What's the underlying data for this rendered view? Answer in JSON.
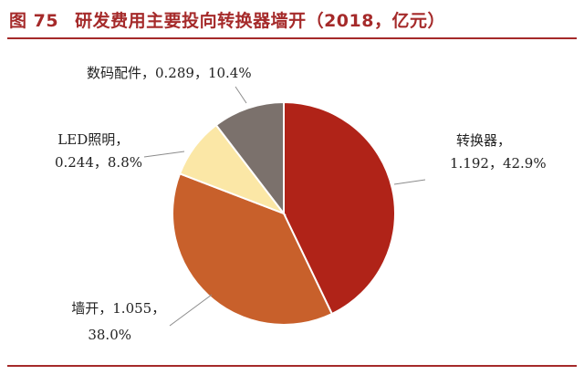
{
  "figure": {
    "number": "图 75",
    "title": "研发费用主要投向转换器墙开（2018，亿元）"
  },
  "chart_data": {
    "type": "pie",
    "title": "研发费用主要投向转换器墙开（2018，亿元）",
    "unit": "亿元",
    "start_angle_deg": 0,
    "direction": "clockwise",
    "slices": [
      {
        "name": "转换器",
        "value": 1.192,
        "percent": 42.9,
        "color": "#b02318",
        "label_lines": [
          "转换器，",
          "1.192，42.9%"
        ]
      },
      {
        "name": "墙开",
        "value": 1.055,
        "percent": 38.0,
        "color": "#c8602b",
        "label_lines": [
          "墙开，1.055，",
          "38.0%"
        ]
      },
      {
        "name": "LED照明",
        "value": 0.244,
        "percent": 8.8,
        "color": "#fbe7a6",
        "label_lines": [
          "LED照明，",
          "0.244，8.8%"
        ]
      },
      {
        "name": "数码配件",
        "value": 0.289,
        "percent": 10.4,
        "color": "#7b716c",
        "label_lines": [
          "数码配件，0.289，10.4%"
        ]
      }
    ]
  }
}
